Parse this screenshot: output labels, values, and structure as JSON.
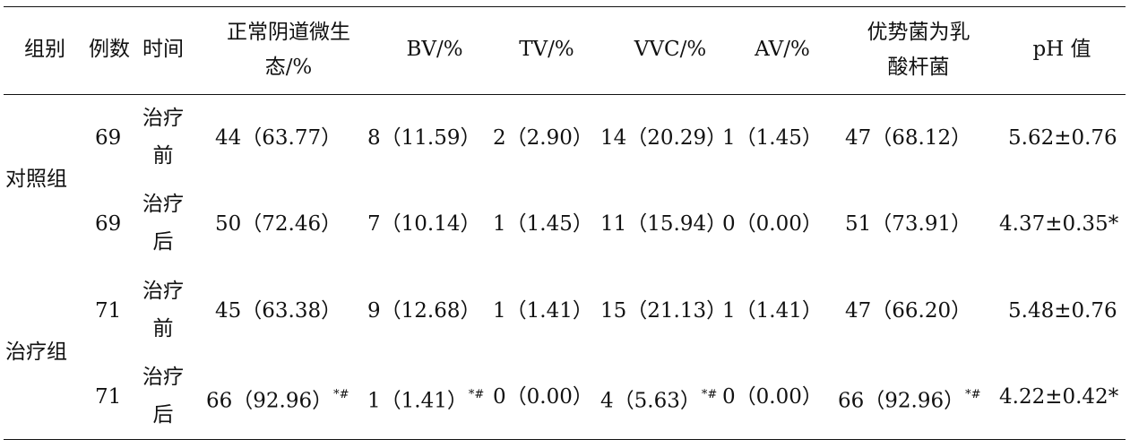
{
  "table": {
    "headers": {
      "group": "组别",
      "cases": "例数",
      "time": "时间",
      "normal_line1": "正常阴道微生",
      "normal_line2": "态/%",
      "bv": "BV/%",
      "tv": "TV/%",
      "vvc": "VVC/%",
      "av": "AV/%",
      "lacto_line1": "优势菌为乳",
      "lacto_line2": "酸杆菌",
      "ph": "pH 值"
    },
    "groups": [
      {
        "name": "对照组"
      },
      {
        "name": "治疗组"
      }
    ],
    "rows": [
      {
        "cases": "69",
        "time_l1": "治疗",
        "time_l2": "前",
        "normal": "44（63.77）",
        "normal_mark": "",
        "bv": "8（11.59）",
        "bv_mark": "",
        "tv": "2（2.90）",
        "tv_mark": "",
        "vvc": "14（20.29）",
        "vvc_mark": "",
        "av": "1（1.45）",
        "av_mark": "",
        "lacto": "47（68.12）",
        "lacto_mark": "",
        "ph": "5.62±0.76"
      },
      {
        "cases": "69",
        "time_l1": "治疗",
        "time_l2": "后",
        "normal": "50（72.46）",
        "normal_mark": "",
        "bv": "7（10.14）",
        "bv_mark": "",
        "tv": "1（1.45）",
        "tv_mark": "",
        "vvc": "11（15.94）",
        "vvc_mark": "",
        "av": "0（0.00）",
        "av_mark": "",
        "lacto": "51（73.91）",
        "lacto_mark": "",
        "ph": "4.37±0.35*"
      },
      {
        "cases": "71",
        "time_l1": "治疗",
        "time_l2": "前",
        "normal": "45（63.38）",
        "normal_mark": "",
        "bv": "9（12.68）",
        "bv_mark": "",
        "tv": "1（1.41）",
        "tv_mark": "",
        "vvc": "15（21.13）",
        "vvc_mark": "",
        "av": "1（1.41）",
        "av_mark": "",
        "lacto": "47（66.20）",
        "lacto_mark": "",
        "ph": "5.48±0.76"
      },
      {
        "cases": "71",
        "time_l1": "治疗",
        "time_l2": "后",
        "normal": "66（92.96）",
        "normal_mark": "*#",
        "bv": "1（1.41）",
        "bv_mark": "*#",
        "tv": "0（0.00）",
        "tv_mark": "",
        "vvc": "4（5.63）",
        "vvc_mark": "*#",
        "av": "0（0.00）",
        "av_mark": "",
        "lacto": "66（92.96）",
        "lacto_mark": "*#",
        "ph": "4.22±0.42*"
      }
    ]
  }
}
